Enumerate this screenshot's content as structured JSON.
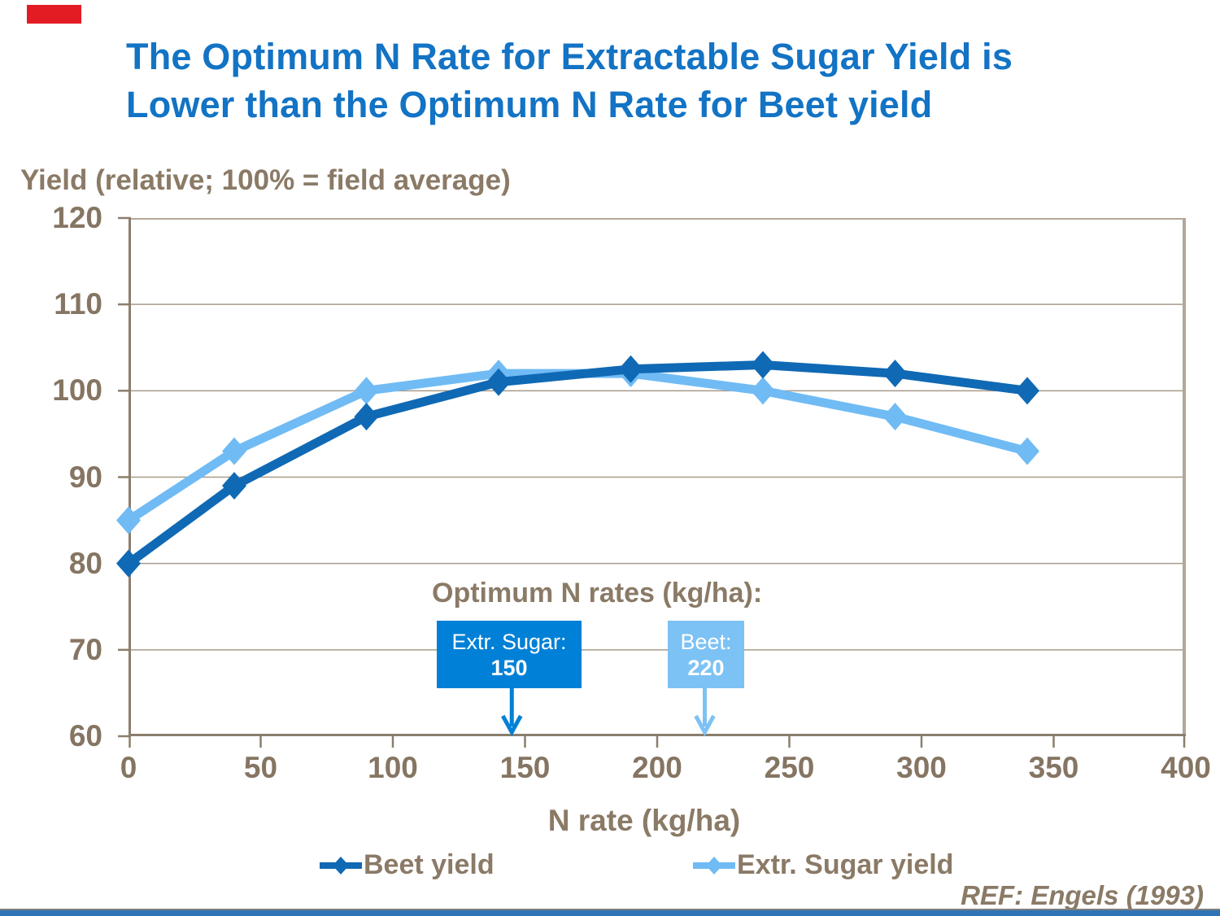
{
  "title": {
    "line1": "The Optimum N Rate for Extractable Sugar Yield is",
    "line2": "Lower than the Optimum N Rate for Beet yield"
  },
  "chart_data": {
    "type": "line",
    "x": [
      0,
      40,
      90,
      140,
      190,
      240,
      290,
      340
    ],
    "series": [
      {
        "name": "Beet yield",
        "color": "#1069B4",
        "values": [
          80,
          89,
          97,
          101,
          102.5,
          103,
          102,
          100
        ]
      },
      {
        "name": "Extr. Sugar yield",
        "color": "#70BBF4",
        "values": [
          85,
          93,
          100,
          102,
          102,
          100,
          97,
          93
        ]
      }
    ],
    "title": "",
    "xlabel": "N rate (kg/ha)",
    "ylabel": "Yield (relative; 100% = field average)",
    "xlim": [
      0,
      400
    ],
    "ylim": [
      60,
      120
    ],
    "x_ticks": [
      0,
      50,
      100,
      150,
      200,
      250,
      300,
      350,
      400
    ],
    "y_ticks": [
      60,
      70,
      80,
      90,
      100,
      110,
      120
    ],
    "grid": true,
    "legend_position": "bottom"
  },
  "annotation": {
    "heading": "Optimum N rates (kg/ha):",
    "boxes": [
      {
        "label": "Extr. Sugar:",
        "value": "150",
        "color": "#0080D6",
        "arrow_n": 145
      },
      {
        "label": "Beet:",
        "value": "220",
        "color": "#7DC2F4",
        "arrow_n": 218
      }
    ]
  },
  "footer": {
    "ref": "REF: Engels (1993)"
  },
  "colors": {
    "title_blue": "#1373C4",
    "text_taupe": "#8A7A66",
    "axis_dark": "#8B7E6E",
    "axis_light": "#B3A798",
    "gridline": "#A79A89",
    "accent_red": "#E31B23",
    "bottom_bar_blue": "#2E74B5"
  }
}
